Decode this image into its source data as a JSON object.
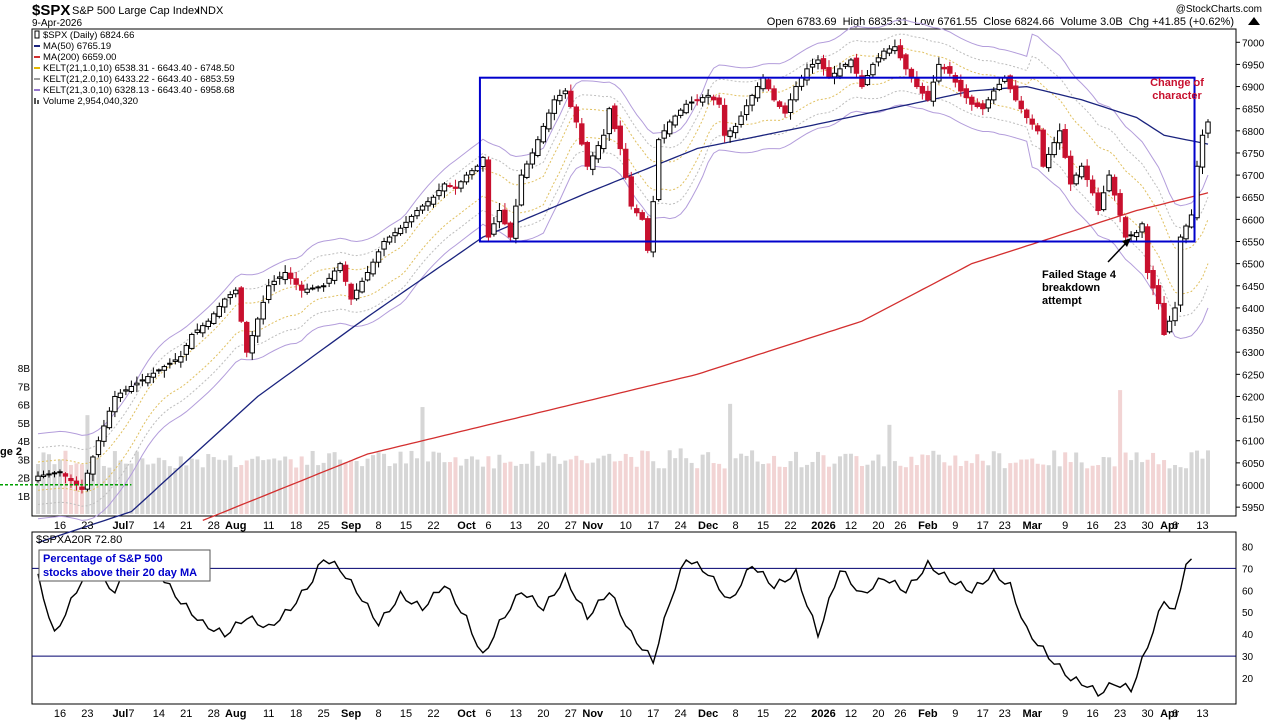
{
  "header": {
    "symbol": "$SPX",
    "name": "S&P 500 Large Cap Index",
    "exchange": "INDX",
    "date": "9-Apr-2026",
    "watermark": "@StockCharts.com",
    "quote": "Open 6783.69  High 6835.31  Low 6761.55  Close 6824.66  Volume 3.0B  Chg +41.85 (+0.62%)"
  },
  "legend": [
    {
      "label": "$SPX (Daily) 6824.66",
      "color": "#000000",
      "icon": "candle-icon"
    },
    {
      "label": "MA(50) 6765.19",
      "color": "#1a237e",
      "icon": "line-icon"
    },
    {
      "label": "MA(200) 6659.00",
      "color": "#d32f2f",
      "icon": "line-icon"
    },
    {
      "label": "KELT(21,1.0,10) 6538.31 - 6643.40 - 6748.50",
      "color": "#e6b800",
      "icon": "line-icon"
    },
    {
      "label": "KELT(21,2.0,10) 6433.22 - 6643.40 - 6853.59",
      "color": "#9e9e9e",
      "icon": "line-icon"
    },
    {
      "label": "KELT(21,3.0,10) 6328.13 - 6643.40 - 6958.68",
      "color": "#9575cd",
      "icon": "line-icon"
    },
    {
      "label": "Volume 2,954,040,320",
      "color": "#555555",
      "icon": "volume-bars-icon"
    }
  ],
  "colors": {
    "up": "#000000",
    "down": "#c8102e",
    "ma50": "#1a237e",
    "ma200": "#d32f2f",
    "kelt_outer": "#b39ddb",
    "kelt_mid": "#bdbdbd",
    "kelt_inner": "#e0c060",
    "box": "#0000cc",
    "vol_up": "#d6d6d6",
    "vol_down": "#f2d4d4",
    "support_dash": "#00a000"
  },
  "annotations": {
    "change_of_character": [
      "Change of",
      "character"
    ],
    "failed_stage4": [
      "Failed Stage 4",
      "breakdown",
      "attempt"
    ],
    "breadth_label": [
      "Percentage of S&P 500",
      "stocks above their 20 day MA"
    ],
    "truncated_left": "ge 2"
  },
  "breadth": {
    "title": "$SPXA20R 72.80",
    "ylim": [
      10,
      82
    ],
    "ticks": [
      20,
      30,
      40,
      50,
      60,
      70,
      80
    ],
    "hlines": [
      30,
      70
    ]
  },
  "x_axis": [
    {
      "label": "16",
      "i": 4
    },
    {
      "label": "23",
      "i": 9
    },
    {
      "label": "Jul",
      "i": 15,
      "bold": true
    },
    {
      "label": "7",
      "i": 17
    },
    {
      "label": "14",
      "i": 22
    },
    {
      "label": "21",
      "i": 27
    },
    {
      "label": "28",
      "i": 32
    },
    {
      "label": "Aug",
      "i": 36,
      "bold": true
    },
    {
      "label": "11",
      "i": 42
    },
    {
      "label": "18",
      "i": 47
    },
    {
      "label": "25",
      "i": 52
    },
    {
      "label": "Sep",
      "i": 57,
      "bold": true
    },
    {
      "label": "8",
      "i": 62
    },
    {
      "label": "15",
      "i": 67
    },
    {
      "label": "22",
      "i": 72
    },
    {
      "label": "Oct",
      "i": 78,
      "bold": true
    },
    {
      "label": "6",
      "i": 82
    },
    {
      "label": "13",
      "i": 87
    },
    {
      "label": "20",
      "i": 92
    },
    {
      "label": "27",
      "i": 97
    },
    {
      "label": "Nov",
      "i": 101,
      "bold": true
    },
    {
      "label": "10",
      "i": 107
    },
    {
      "label": "17",
      "i": 112
    },
    {
      "label": "24",
      "i": 117
    },
    {
      "label": "Dec",
      "i": 122,
      "bold": true
    },
    {
      "label": "8",
      "i": 127
    },
    {
      "label": "15",
      "i": 132
    },
    {
      "label": "22",
      "i": 137
    },
    {
      "label": "2026",
      "i": 143,
      "bold": true
    },
    {
      "label": "12",
      "i": 148
    },
    {
      "label": "20",
      "i": 153
    },
    {
      "label": "26",
      "i": 157
    },
    {
      "label": "Feb",
      "i": 162,
      "bold": true
    },
    {
      "label": "9",
      "i": 167
    },
    {
      "label": "17",
      "i": 172
    },
    {
      "label": "23",
      "i": 176
    },
    {
      "label": "Mar",
      "i": 181,
      "bold": true
    },
    {
      "label": "9",
      "i": 187
    },
    {
      "label": "16",
      "i": 192
    },
    {
      "label": "23",
      "i": 197
    },
    {
      "label": "30",
      "i": 202
    },
    {
      "label": "Apr",
      "i": 206,
      "bold": true
    },
    {
      "label": "6",
      "i": 207
    },
    {
      "label": "13",
      "i": 212
    }
  ],
  "chart_data": [
    {
      "type": "candlestick",
      "title": "$SPX S&P 500 Large Cap Index INDX",
      "ylim": [
        5930,
        7030
      ],
      "y_ticks": [
        5950,
        6000,
        6050,
        6100,
        6150,
        6200,
        6250,
        6300,
        6350,
        6400,
        6450,
        6500,
        6550,
        6600,
        6650,
        6700,
        6750,
        6800,
        6850,
        6900,
        6950,
        7000
      ],
      "volume_ticks": [
        "1B",
        "2B",
        "3B",
        "4B",
        "5B",
        "6B",
        "7B",
        "8B"
      ],
      "volume_ylim": [
        0,
        9
      ],
      "box": {
        "i_start": 81,
        "i_end": 210,
        "low": 6550,
        "high": 6920
      },
      "support_line": {
        "i_start": 0,
        "i_end": 17,
        "value": 5960
      },
      "anchors": [
        [
          0,
          6020
        ],
        [
          4,
          6030
        ],
        [
          8,
          5990
        ],
        [
          11,
          6100
        ],
        [
          14,
          6200
        ],
        [
          18,
          6230
        ],
        [
          22,
          6260
        ],
        [
          26,
          6290
        ],
        [
          28,
          6340
        ],
        [
          31,
          6370
        ],
        [
          34,
          6420
        ],
        [
          36,
          6440
        ],
        [
          38,
          6300
        ],
        [
          42,
          6450
        ],
        [
          45,
          6480
        ],
        [
          48,
          6440
        ],
        [
          52,
          6450
        ],
        [
          55,
          6500
        ],
        [
          57,
          6420
        ],
        [
          60,
          6480
        ],
        [
          63,
          6550
        ],
        [
          66,
          6580
        ],
        [
          69,
          6620
        ],
        [
          72,
          6650
        ],
        [
          74,
          6680
        ],
        [
          76,
          6670
        ],
        [
          78,
          6700
        ],
        [
          80,
          6720
        ],
        [
          81,
          6740
        ],
        [
          82,
          6560
        ],
        [
          84,
          6620
        ],
        [
          86,
          6560
        ],
        [
          88,
          6700
        ],
        [
          90,
          6750
        ],
        [
          92,
          6810
        ],
        [
          94,
          6870
        ],
        [
          96,
          6890
        ],
        [
          98,
          6820
        ],
        [
          100,
          6720
        ],
        [
          103,
          6790
        ],
        [
          104,
          6850
        ],
        [
          106,
          6760
        ],
        [
          108,
          6630
        ],
        [
          110,
          6600
        ],
        [
          111,
          6530
        ],
        [
          112,
          6640
        ],
        [
          113,
          6780
        ],
        [
          115,
          6820
        ],
        [
          118,
          6860
        ],
        [
          120,
          6870
        ],
        [
          122,
          6880
        ],
        [
          124,
          6860
        ],
        [
          125,
          6790
        ],
        [
          127,
          6810
        ],
        [
          130,
          6880
        ],
        [
          132,
          6920
        ],
        [
          134,
          6870
        ],
        [
          136,
          6840
        ],
        [
          138,
          6900
        ],
        [
          140,
          6940
        ],
        [
          142,
          6960
        ],
        [
          144,
          6920
        ],
        [
          146,
          6940
        ],
        [
          148,
          6960
        ],
        [
          150,
          6900
        ],
        [
          152,
          6950
        ],
        [
          154,
          6980
        ],
        [
          156,
          6990
        ],
        [
          158,
          6940
        ],
        [
          160,
          6900
        ],
        [
          162,
          6870
        ],
        [
          164,
          6950
        ],
        [
          166,
          6930
        ],
        [
          168,
          6890
        ],
        [
          170,
          6860
        ],
        [
          172,
          6850
        ],
        [
          174,
          6890
        ],
        [
          176,
          6920
        ],
        [
          178,
          6870
        ],
        [
          180,
          6830
        ],
        [
          182,
          6800
        ],
        [
          183,
          6720
        ],
        [
          186,
          6800
        ],
        [
          188,
          6680
        ],
        [
          190,
          6720
        ],
        [
          192,
          6660
        ],
        [
          193,
          6620
        ],
        [
          195,
          6700
        ],
        [
          197,
          6610
        ],
        [
          198,
          6560
        ],
        [
          200,
          6570
        ],
        [
          201,
          6590
        ],
        [
          202,
          6480
        ],
        [
          204,
          6410
        ],
        [
          205,
          6340
        ],
        [
          207,
          6400
        ],
        [
          208,
          6560
        ],
        [
          210,
          6610
        ],
        [
          211,
          6720
        ],
        [
          212,
          6790
        ],
        [
          213,
          6820
        ]
      ],
      "ma50_anchors": [
        [
          0,
          5870
        ],
        [
          17,
          5940
        ],
        [
          40,
          6200
        ],
        [
          60,
          6380
        ],
        [
          81,
          6560
        ],
        [
          100,
          6660
        ],
        [
          120,
          6760
        ],
        [
          140,
          6810
        ],
        [
          155,
          6850
        ],
        [
          170,
          6890
        ],
        [
          180,
          6900
        ],
        [
          190,
          6870
        ],
        [
          200,
          6830
        ],
        [
          205,
          6790
        ],
        [
          213,
          6770
        ]
      ],
      "ma200_anchors": [
        [
          30,
          5920
        ],
        [
          60,
          6070
        ],
        [
          90,
          6160
        ],
        [
          120,
          6250
        ],
        [
          150,
          6370
        ],
        [
          170,
          6500
        ],
        [
          185,
          6560
        ],
        [
          200,
          6620
        ],
        [
          213,
          6660
        ]
      ],
      "breadth_anchors": [
        [
          0,
          66
        ],
        [
          3,
          40
        ],
        [
          6,
          55
        ],
        [
          9,
          70
        ],
        [
          14,
          60
        ],
        [
          18,
          75
        ],
        [
          22,
          68
        ],
        [
          26,
          55
        ],
        [
          30,
          45
        ],
        [
          34,
          40
        ],
        [
          38,
          48
        ],
        [
          42,
          43
        ],
        [
          46,
          52
        ],
        [
          50,
          65
        ],
        [
          52,
          75
        ],
        [
          55,
          70
        ],
        [
          58,
          60
        ],
        [
          62,
          45
        ],
        [
          66,
          58
        ],
        [
          70,
          52
        ],
        [
          74,
          63
        ],
        [
          78,
          47
        ],
        [
          81,
          30
        ],
        [
          84,
          45
        ],
        [
          88,
          60
        ],
        [
          92,
          52
        ],
        [
          96,
          66
        ],
        [
          100,
          48
        ],
        [
          104,
          60
        ],
        [
          108,
          40
        ],
        [
          112,
          28
        ],
        [
          115,
          55
        ],
        [
          118,
          75
        ],
        [
          122,
          68
        ],
        [
          126,
          55
        ],
        [
          130,
          72
        ],
        [
          134,
          62
        ],
        [
          138,
          68
        ],
        [
          142,
          40
        ],
        [
          146,
          70
        ],
        [
          150,
          58
        ],
        [
          154,
          66
        ],
        [
          158,
          60
        ],
        [
          162,
          72
        ],
        [
          166,
          65
        ],
        [
          170,
          60
        ],
        [
          174,
          68
        ],
        [
          177,
          62
        ],
        [
          180,
          42
        ],
        [
          184,
          30
        ],
        [
          188,
          20
        ],
        [
          191,
          17
        ],
        [
          193,
          13
        ],
        [
          196,
          18
        ],
        [
          199,
          15
        ],
        [
          201,
          28
        ],
        [
          203,
          42
        ],
        [
          205,
          56
        ],
        [
          207,
          50
        ],
        [
          209,
          73
        ],
        [
          210,
          72.8
        ]
      ],
      "price_ylabel": "",
      "volume_ylabel": ""
    }
  ]
}
